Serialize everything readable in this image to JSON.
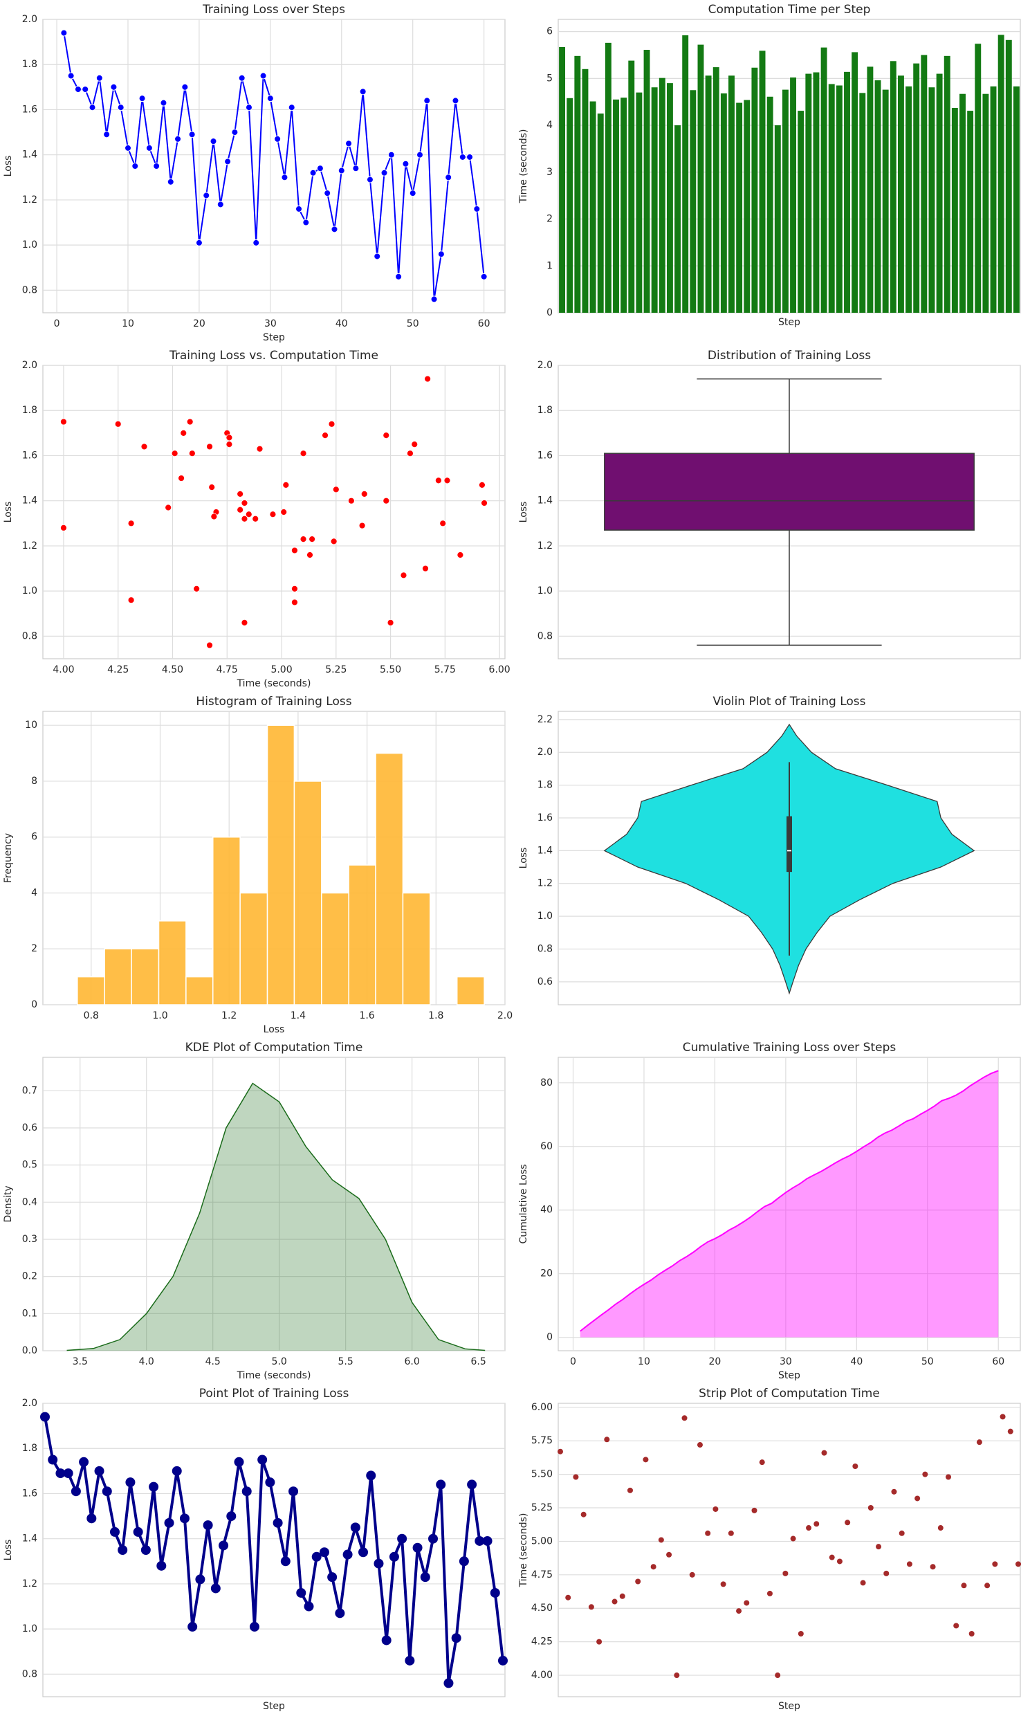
{
  "chart_data": [
    {
      "type": "line",
      "title": "Training Loss over Steps",
      "xlabel": "Step",
      "ylabel": "Loss",
      "color": "#0000ff",
      "grid": "both",
      "markers": true,
      "x": [
        1,
        2,
        3,
        4,
        5,
        6,
        7,
        8,
        9,
        10,
        11,
        12,
        13,
        14,
        15,
        16,
        17,
        18,
        19,
        20,
        21,
        22,
        23,
        24,
        25,
        26,
        27,
        28,
        29,
        30,
        31,
        32,
        33,
        34,
        35,
        36,
        37,
        38,
        39,
        40,
        41,
        42,
        43,
        44,
        45,
        46,
        47,
        48,
        49,
        50,
        51,
        52,
        53,
        54,
        55,
        56,
        57,
        58,
        59,
        60
      ],
      "values": [
        1.94,
        1.75,
        1.69,
        1.69,
        1.61,
        1.74,
        1.49,
        1.7,
        1.61,
        1.43,
        1.35,
        1.65,
        1.43,
        1.35,
        1.63,
        1.28,
        1.47,
        1.7,
        1.49,
        1.01,
        1.22,
        1.46,
        1.18,
        1.37,
        1.5,
        1.74,
        1.61,
        1.01,
        1.75,
        1.65,
        1.47,
        1.3,
        1.61,
        1.16,
        1.1,
        1.32,
        1.34,
        1.23,
        1.07,
        1.33,
        1.45,
        1.34,
        1.68,
        1.29,
        0.95,
        1.32,
        1.4,
        0.86,
        1.36,
        1.23,
        1.4,
        1.64,
        0.76,
        0.96,
        1.3,
        1.64,
        1.39,
        1.39,
        1.16,
        0.86
      ],
      "xlim": [
        -1.95,
        62.95
      ],
      "xticks": [
        0,
        10,
        20,
        30,
        40,
        50,
        60
      ],
      "ylim": [
        0.7,
        2.0
      ],
      "yticks": [
        0.8,
        {
          "value": 1,
          "label": "1.0"
        },
        1.2,
        1.4,
        1.6,
        1.8,
        {
          "value": 2,
          "label": "2.0"
        }
      ]
    },
    {
      "type": "bar",
      "title": "Computation Time per Step",
      "xlabel": "Step",
      "ylabel": "Time (seconds)",
      "color": "#137a13",
      "grid": "y",
      "values": [
        5.67,
        4.58,
        5.48,
        5.2,
        4.51,
        4.25,
        5.76,
        4.55,
        4.59,
        5.38,
        4.7,
        5.61,
        4.81,
        5.01,
        4.9,
        4.0,
        5.92,
        4.75,
        5.72,
        5.06,
        5.24,
        4.68,
        5.06,
        4.48,
        4.54,
        5.23,
        5.59,
        4.61,
        4.0,
        4.76,
        5.02,
        4.31,
        5.1,
        5.13,
        5.66,
        4.88,
        4.85,
        5.14,
        5.56,
        4.69,
        5.25,
        4.96,
        4.76,
        5.37,
        5.06,
        4.83,
        5.32,
        5.5,
        4.81,
        5.1,
        5.48,
        4.37,
        4.67,
        4.31,
        5.74,
        4.67,
        4.83,
        5.93,
        5.82,
        4.83
      ],
      "ylim": [
        0,
        6.26
      ],
      "yticks": [
        0,
        1,
        2,
        3,
        4,
        5,
        6
      ]
    },
    {
      "type": "scatter",
      "title": "Training Loss vs. Computation Time",
      "xlabel": "Time (seconds)",
      "ylabel": "Loss",
      "color": "#ff0000",
      "grid": "both",
      "x": [
        5.67,
        4.58,
        5.48,
        5.2,
        4.51,
        4.25,
        5.76,
        4.55,
        4.59,
        5.38,
        4.7,
        5.61,
        4.81,
        5.01,
        4.9,
        4.0,
        5.92,
        4.75,
        5.72,
        5.06,
        5.24,
        4.68,
        5.06,
        4.48,
        4.54,
        5.23,
        5.59,
        4.61,
        4.0,
        4.76,
        5.02,
        4.31,
        5.1,
        5.13,
        5.66,
        4.88,
        4.85,
        5.14,
        5.56,
        4.69,
        5.25,
        4.96,
        4.76,
        5.37,
        5.06,
        4.83,
        5.32,
        5.5,
        4.81,
        5.1,
        5.48,
        4.37,
        4.67,
        4.31,
        5.74,
        4.67,
        4.83,
        5.93,
        5.82,
        4.83
      ],
      "values": [
        1.94,
        1.75,
        1.69,
        1.69,
        1.61,
        1.74,
        1.49,
        1.7,
        1.61,
        1.43,
        1.35,
        1.65,
        1.43,
        1.35,
        1.63,
        1.28,
        1.47,
        1.7,
        1.49,
        1.01,
        1.22,
        1.46,
        1.18,
        1.37,
        1.5,
        1.74,
        1.61,
        1.01,
        1.75,
        1.65,
        1.47,
        1.3,
        1.61,
        1.16,
        1.1,
        1.32,
        1.34,
        1.23,
        1.07,
        1.33,
        1.45,
        1.34,
        1.68,
        1.29,
        0.95,
        1.32,
        1.4,
        0.86,
        1.36,
        1.23,
        1.4,
        1.64,
        0.76,
        0.96,
        1.3,
        1.64,
        1.39,
        1.39,
        1.16,
        0.86
      ],
      "xlim": [
        3.905,
        6.025
      ],
      "xticks": [
        {
          "value": 4,
          "label": "4.00"
        },
        {
          "value": 4.25,
          "label": "4.25"
        },
        {
          "value": 4.5,
          "label": "4.50"
        },
        {
          "value": 4.75,
          "label": "4.75"
        },
        {
          "value": 5,
          "label": "5.00"
        },
        {
          "value": 5.25,
          "label": "5.25"
        },
        {
          "value": 5.5,
          "label": "5.50"
        },
        {
          "value": 5.75,
          "label": "5.75"
        },
        {
          "value": 6,
          "label": "6.00"
        }
      ],
      "ylim": [
        0.7,
        2.0
      ],
      "yticks": [
        0.8,
        {
          "value": 1,
          "label": "1.0"
        },
        1.2,
        1.4,
        1.6,
        1.8,
        {
          "value": 2,
          "label": "2.0"
        }
      ]
    },
    {
      "type": "box",
      "title": "Distribution of Training Loss",
      "ylabel": "Loss",
      "color": "#700f70",
      "grid": "y",
      "stats": {
        "min": 0.76,
        "q1": 1.27,
        "median": 1.4,
        "q3": 1.61,
        "max": 1.94
      },
      "ylim": [
        0.7,
        2.0
      ],
      "yticks": [
        0.8,
        {
          "value": 1,
          "label": "1.0"
        },
        1.2,
        1.4,
        1.6,
        1.8,
        {
          "value": 2,
          "label": "2.0"
        }
      ]
    },
    {
      "type": "histogram",
      "title": "Histogram of Training Loss",
      "xlabel": "Loss",
      "ylabel": "Frequency",
      "color": "#ffb733",
      "grid": "both",
      "bins": [
        0.76,
        0.839,
        0.917,
        0.996,
        1.075,
        1.153,
        1.232,
        1.311,
        1.389,
        1.468,
        1.547,
        1.625,
        1.704,
        1.783,
        1.861,
        1.94
      ],
      "values": [
        1,
        2,
        2,
        3,
        1,
        6,
        4,
        10,
        8,
        4,
        5,
        9,
        4,
        0,
        1
      ],
      "xlim": [
        0.66,
        2.0
      ],
      "xticks": [
        0.8,
        {
          "value": 1,
          "label": "1.0"
        },
        1.2,
        1.4,
        1.6,
        1.8,
        {
          "value": 2,
          "label": "2.0"
        }
      ],
      "ylim": [
        0,
        10.5
      ],
      "yticks": [
        0,
        2,
        4,
        6,
        8,
        10
      ]
    },
    {
      "type": "violin",
      "title": "Violin Plot of Training Loss",
      "ylabel": "Loss",
      "color": "#1fe0e0",
      "grid": "y",
      "loss_points": [
        0.53,
        0.6,
        0.7,
        0.8,
        0.9,
        1.0,
        1.1,
        1.2,
        1.3,
        1.4,
        1.5,
        1.6,
        1.7,
        1.8,
        1.9,
        2.0,
        2.1,
        2.17
      ],
      "density": [
        0,
        0.02,
        0.05,
        0.09,
        0.15,
        0.22,
        0.38,
        0.56,
        0.82,
        1.0,
        0.88,
        0.82,
        0.8,
        0.53,
        0.25,
        0.12,
        0.04,
        0
      ],
      "stats": {
        "min": 0.76,
        "q1": 1.27,
        "median": 1.4,
        "q3": 1.61,
        "max": 1.94
      },
      "ylim": [
        0.46,
        2.25
      ],
      "yticks": [
        0.6,
        0.8,
        {
          "value": 1,
          "label": "1.0"
        },
        1.2,
        1.4,
        1.6,
        1.8,
        {
          "value": 2,
          "label": "2.0"
        },
        2.2
      ]
    },
    {
      "type": "kde",
      "title": "KDE Plot of Computation Time",
      "xlabel": "Time (seconds)",
      "ylabel": "Density",
      "color": "#1a6b1a",
      "grid": "both",
      "x": [
        3.4,
        3.6,
        3.8,
        4.0,
        4.2,
        4.4,
        4.6,
        4.8,
        5.0,
        5.2,
        5.4,
        5.6,
        5.8,
        6.0,
        6.2,
        6.4,
        6.55
      ],
      "values": [
        0.001,
        0.006,
        0.03,
        0.1,
        0.2,
        0.37,
        0.6,
        0.72,
        0.67,
        0.55,
        0.46,
        0.41,
        0.3,
        0.13,
        0.03,
        0.005,
        0.001
      ],
      "xlim": [
        3.22,
        6.7
      ],
      "xticks": [
        3.5,
        {
          "value": 4,
          "label": "4.0"
        },
        4.5,
        {
          "value": 5,
          "label": "5.0"
        },
        5.5,
        {
          "value": 6,
          "label": "6.0"
        },
        6.5
      ],
      "ylim": [
        0,
        0.79
      ],
      "yticks": [
        {
          "value": 0,
          "label": "0.0"
        },
        0.1,
        0.2,
        0.3,
        0.4,
        0.5,
        0.6,
        0.7
      ]
    },
    {
      "type": "cumulative",
      "title": "Cumulative Training Loss over Steps",
      "xlabel": "Step",
      "ylabel": "Cumulative Loss",
      "color": "#ff00ff",
      "grid": "both",
      "x": [
        1,
        2,
        3,
        4,
        5,
        6,
        7,
        8,
        9,
        10,
        11,
        12,
        13,
        14,
        15,
        16,
        17,
        18,
        19,
        20,
        21,
        22,
        23,
        24,
        25,
        26,
        27,
        28,
        29,
        30,
        31,
        32,
        33,
        34,
        35,
        36,
        37,
        38,
        39,
        40,
        41,
        42,
        43,
        44,
        45,
        46,
        47,
        48,
        49,
        50,
        51,
        52,
        53,
        54,
        55,
        56,
        57,
        58,
        59,
        60
      ],
      "values": [
        1.94,
        1.75,
        1.69,
        1.69,
        1.61,
        1.74,
        1.49,
        1.7,
        1.61,
        1.43,
        1.35,
        1.65,
        1.43,
        1.35,
        1.63,
        1.28,
        1.47,
        1.7,
        1.49,
        1.01,
        1.22,
        1.46,
        1.18,
        1.37,
        1.5,
        1.74,
        1.61,
        1.01,
        1.75,
        1.65,
        1.47,
        1.3,
        1.61,
        1.16,
        1.1,
        1.32,
        1.34,
        1.23,
        1.07,
        1.33,
        1.45,
        1.34,
        1.68,
        1.29,
        0.95,
        1.32,
        1.4,
        0.86,
        1.36,
        1.23,
        1.4,
        1.64,
        0.76,
        0.96,
        1.3,
        1.64,
        1.39,
        1.39,
        1.16,
        0.86
      ],
      "xlim": [
        -2.1,
        63.1
      ],
      "xticks": [
        0,
        10,
        20,
        30,
        40,
        50,
        60
      ],
      "ylim": [
        -4.2,
        88
      ],
      "yticks": [
        0,
        20,
        40,
        60,
        80
      ]
    },
    {
      "type": "point",
      "title": "Point Plot of Training Loss",
      "xlabel": "Step",
      "ylabel": "Loss",
      "color": "#00008b",
      "grid": "y",
      "values": [
        1.94,
        1.75,
        1.69,
        1.69,
        1.61,
        1.74,
        1.49,
        1.7,
        1.61,
        1.43,
        1.35,
        1.65,
        1.43,
        1.35,
        1.63,
        1.28,
        1.47,
        1.7,
        1.49,
        1.01,
        1.22,
        1.46,
        1.18,
        1.37,
        1.5,
        1.74,
        1.61,
        1.01,
        1.75,
        1.65,
        1.47,
        1.3,
        1.61,
        1.16,
        1.1,
        1.32,
        1.34,
        1.23,
        1.07,
        1.33,
        1.45,
        1.34,
        1.68,
        1.29,
        0.95,
        1.32,
        1.4,
        0.86,
        1.36,
        1.23,
        1.4,
        1.64,
        0.76,
        0.96,
        1.3,
        1.64,
        1.39,
        1.39,
        1.16,
        0.86
      ],
      "ylim": [
        0.7,
        2.0
      ],
      "yticks": [
        0.8,
        {
          "value": 1,
          "label": "1.0"
        },
        1.2,
        1.4,
        1.6,
        1.8,
        {
          "value": 2,
          "label": "2.0"
        }
      ]
    },
    {
      "type": "strip",
      "title": "Strip Plot of Computation Time",
      "xlabel": "Step",
      "ylabel": "Time (seconds)",
      "color": "#a52a2a",
      "grid": "y",
      "values": [
        5.67,
        4.58,
        5.48,
        5.2,
        4.51,
        4.25,
        5.76,
        4.55,
        4.59,
        5.38,
        4.7,
        5.61,
        4.81,
        5.01,
        4.9,
        4.0,
        5.92,
        4.75,
        5.72,
        5.06,
        5.24,
        4.68,
        5.06,
        4.48,
        4.54,
        5.23,
        5.59,
        4.61,
        4.0,
        4.76,
        5.02,
        4.31,
        5.1,
        5.13,
        5.66,
        4.88,
        4.85,
        5.14,
        5.56,
        4.69,
        5.25,
        4.96,
        4.76,
        5.37,
        5.06,
        4.83,
        5.32,
        5.5,
        4.81,
        5.1,
        5.48,
        4.37,
        4.67,
        4.31,
        5.74,
        4.67,
        4.83,
        5.93,
        5.82,
        4.83
      ],
      "ylim": [
        3.84,
        6.03
      ],
      "yticks": [
        {
          "value": 4,
          "label": "4.00"
        },
        {
          "value": 4.25,
          "label": "4.25"
        },
        {
          "value": 4.5,
          "label": "4.50"
        },
        {
          "value": 4.75,
          "label": "4.75"
        },
        {
          "value": 5,
          "label": "5.00"
        },
        {
          "value": 5.25,
          "label": "5.25"
        },
        {
          "value": 5.5,
          "label": "5.50"
        },
        {
          "value": 5.75,
          "label": "5.75"
        },
        {
          "value": 6,
          "label": "6.00"
        }
      ]
    }
  ]
}
